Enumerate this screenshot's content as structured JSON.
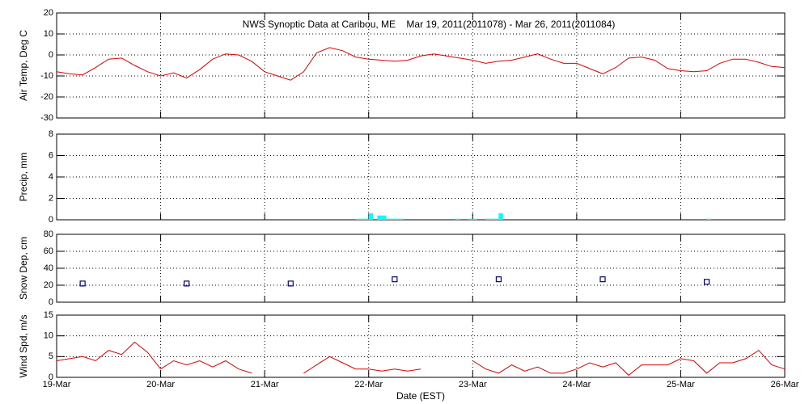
{
  "chart_data": [
    {
      "type": "line",
      "title": "NWS Synoptic Data at Caribou, ME    Mar 19, 2011(2011078) - Mar 26, 2011(2011084)",
      "ylabel": "Air Temp, Deg C",
      "ylim": [
        -30,
        20
      ],
      "yticks": [
        -30,
        -20,
        -10,
        0,
        10,
        20
      ],
      "xlim": [
        0,
        7
      ],
      "xticks": [
        0,
        1,
        2,
        3,
        4,
        5,
        6,
        7
      ],
      "grid": true,
      "series": [
        {
          "color": "#dd0000",
          "x": [
            0,
            0.125,
            0.25,
            0.375,
            0.5,
            0.625,
            0.75,
            0.875,
            1,
            1.125,
            1.25,
            1.375,
            1.5,
            1.625,
            1.75,
            1.875,
            2,
            2.125,
            2.25,
            2.375,
            2.5,
            2.625,
            2.75,
            2.875,
            3,
            3.125,
            3.25,
            3.375,
            3.5,
            3.625,
            3.75,
            3.875,
            4,
            4.125,
            4.25,
            4.375,
            4.5,
            4.625,
            4.75,
            4.875,
            5,
            5.125,
            5.25,
            5.375,
            5.5,
            5.625,
            5.75,
            5.875,
            6,
            6.125,
            6.25,
            6.375,
            6.5,
            6.625,
            6.75,
            6.875,
            7
          ],
          "values": [
            -8,
            -9,
            -9.5,
            -6,
            -2,
            -1.5,
            -5,
            -8,
            -10,
            -8.5,
            -11,
            -7,
            -2,
            0.5,
            0,
            -3,
            -8,
            -10,
            -12,
            -8,
            1,
            3.5,
            2,
            -1,
            -2,
            -2.5,
            -3,
            -2.5,
            -0.5,
            0.5,
            -0.5,
            -1.5,
            -2.5,
            -4,
            -3,
            -2.5,
            -1,
            0.5,
            -2,
            -4,
            -4,
            -6.5,
            -9,
            -6,
            -1.5,
            -1,
            -2.5,
            -6.5,
            -7.5,
            -8,
            -7.5,
            -4,
            -2,
            -2,
            -3.5,
            -5.5,
            -6
          ]
        }
      ]
    },
    {
      "type": "bar",
      "ylabel": "Precip, mm",
      "ylim": [
        0,
        8
      ],
      "yticks": [
        0,
        2,
        4,
        6,
        8
      ],
      "xlim": [
        0,
        7
      ],
      "xticks": [
        0,
        1,
        2,
        3,
        4,
        5,
        6,
        7
      ],
      "grid": true,
      "series": [
        {
          "color": "#00ffff",
          "x": [
            2.875,
            2.917,
            2.958,
            3.0,
            3.083,
            3.125,
            3.167,
            3.208,
            3.25,
            3.292,
            3.833,
            3.958,
            4.0,
            4.125,
            4.167,
            4.208,
            4.25,
            6.25
          ],
          "values": [
            0.1,
            0.1,
            0.1,
            0.6,
            0.4,
            0.4,
            0.1,
            0.1,
            0.1,
            0.1,
            0.1,
            0.1,
            0.1,
            0.1,
            0.1,
            0.1,
            0.6,
            0.1
          ]
        }
      ]
    },
    {
      "type": "scatter",
      "ylabel": "Snow Dep, cm",
      "ylim": [
        0,
        80
      ],
      "yticks": [
        0,
        20,
        40,
        60,
        80
      ],
      "xlim": [
        0,
        7
      ],
      "xticks": [
        0,
        1,
        2,
        3,
        4,
        5,
        6,
        7
      ],
      "grid": true,
      "series": [
        {
          "color": "#000080",
          "x": [
            0.25,
            1.25,
            2.25,
            3.25,
            4.25,
            5.25,
            6.25
          ],
          "values": [
            22,
            22,
            22,
            27,
            27,
            27,
            24
          ]
        }
      ]
    },
    {
      "type": "line",
      "ylabel": "Wind Spd, m/s",
      "xlabel": "Date (EST)",
      "ylim": [
        0,
        15
      ],
      "yticks": [
        0,
        5,
        10,
        15
      ],
      "xlim": [
        0,
        7
      ],
      "xticks": [
        {
          "value": 0,
          "label": "19-Mar"
        },
        {
          "value": 1,
          "label": "20-Mar"
        },
        {
          "value": 2,
          "label": "21-Mar"
        },
        {
          "value": 3,
          "label": "22-Mar"
        },
        {
          "value": 4,
          "label": "23-Mar"
        },
        {
          "value": 5,
          "label": "24-Mar"
        },
        {
          "value": 6,
          "label": "25-Mar"
        },
        {
          "value": 7,
          "label": "26-Mar"
        }
      ],
      "grid": true,
      "series": [
        {
          "color": "#dd0000",
          "x": [
            0,
            0.125,
            0.25,
            0.375,
            0.5,
            0.625,
            0.75,
            0.875,
            1,
            1.125,
            1.25,
            1.375,
            1.5,
            1.625,
            1.75,
            1.875,
            2,
            2.125,
            2.25,
            2.375,
            2.5,
            2.625,
            2.75,
            2.875,
            3,
            3.125,
            3.25,
            3.375,
            3.5,
            3.625,
            3.75,
            3.875,
            4,
            4.125,
            4.25,
            4.375,
            4.5,
            4.625,
            4.75,
            4.875,
            5,
            5.125,
            5.25,
            5.375,
            5.5,
            5.625,
            5.75,
            5.875,
            6,
            6.125,
            6.25,
            6.375,
            6.5,
            6.625,
            6.75,
            6.875,
            7
          ],
          "values": [
            4,
            4.5,
            5,
            4,
            6.5,
            5.5,
            8.5,
            6,
            2,
            4,
            3,
            4,
            2.5,
            4,
            2,
            1,
            null,
            null,
            null,
            1,
            3,
            5,
            3.5,
            2,
            2,
            1.5,
            2,
            1.5,
            2,
            null,
            null,
            null,
            4,
            2,
            1,
            3,
            1.5,
            2.5,
            1,
            1,
            2,
            3.5,
            2.5,
            3.5,
            0.5,
            3,
            3,
            3,
            4.5,
            4,
            1,
            3.5,
            3.5,
            4.5,
            6.5,
            3,
            2
          ]
        }
      ]
    }
  ]
}
